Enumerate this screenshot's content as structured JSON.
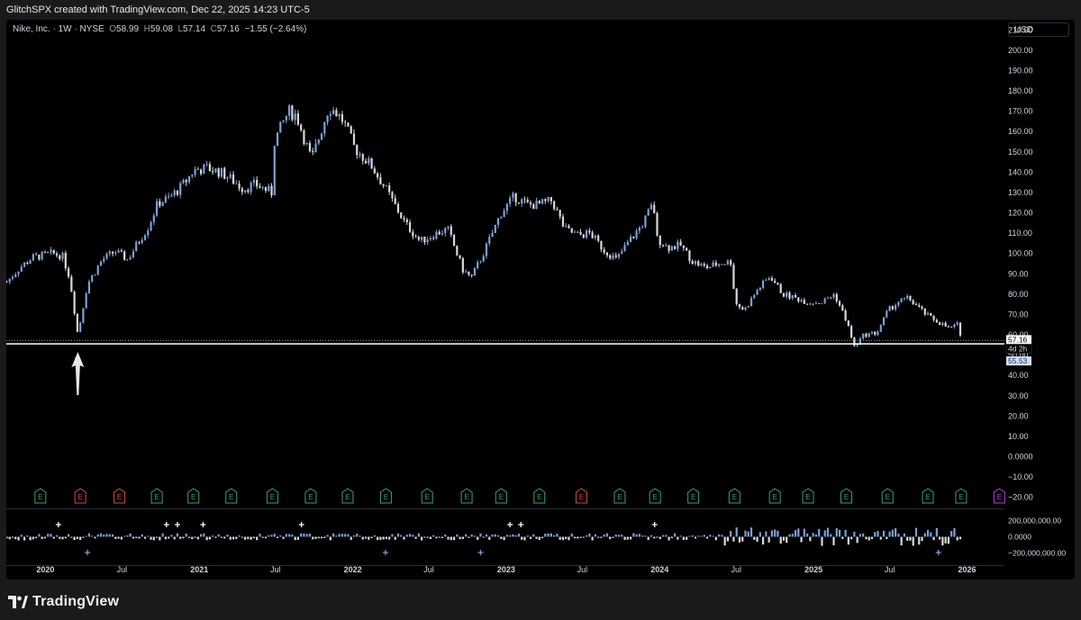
{
  "header": {
    "caption": "GlitchSPX created with TradingView.com, Dec 22, 2025 14:23 UTC-5"
  },
  "legend": {
    "symbol": "Nike, Inc. · 1W · NYSE",
    "open_label": "O",
    "open": "58.99",
    "high_label": "H",
    "high": "59.08",
    "low_label": "L",
    "low": "57.14",
    "close_label": "C",
    "close": "57.16",
    "change": "−1.55 (−2.64%)"
  },
  "currency": "USD",
  "colors": {
    "up": "#7ba0d8",
    "down": "#d8d8d8",
    "support_line": "#ffffff",
    "earnings_green": "#3c9c84",
    "earnings_red": "#d04a4a",
    "earnings_purple": "#b040d8",
    "price_label_bg": "#ffffff",
    "countdown_label_bg": "#2a3144",
    "low_label_bg": "#cfe0f8"
  },
  "price_axis": {
    "ticks": [
      "210.00",
      "200.00",
      "190.00",
      "180.00",
      "170.00",
      "160.00",
      "150.00",
      "140.00",
      "130.00",
      "120.00",
      "110.00",
      "100.00",
      "90.00",
      "80.00",
      "70.00",
      "60.00",
      "50.00",
      "40.00",
      "30.00",
      "20.00",
      "10.00",
      "0.0000",
      "−10.00",
      "−20.00"
    ],
    "current_price": "57.16",
    "countdown": "4d 2h",
    "support_price": "55.53"
  },
  "volume_axis": {
    "ticks": [
      "200,000,000.00",
      "0.0000",
      "−200,000,000.00"
    ]
  },
  "time_axis": {
    "labels": [
      {
        "text": "2020",
        "bold": true
      },
      {
        "text": "Jul",
        "bold": false
      },
      {
        "text": "2021",
        "bold": true
      },
      {
        "text": "Jul",
        "bold": false
      },
      {
        "text": "2022",
        "bold": true
      },
      {
        "text": "Jul",
        "bold": false
      },
      {
        "text": "2023",
        "bold": true
      },
      {
        "text": "Jul",
        "bold": false
      },
      {
        "text": "2024",
        "bold": true
      },
      {
        "text": "Jul",
        "bold": false
      },
      {
        "text": "2025",
        "bold": true
      },
      {
        "text": "Jul",
        "bold": false
      },
      {
        "text": "2026",
        "bold": true
      }
    ]
  },
  "earnings": {
    "marker_text": "E",
    "markers": [
      {
        "date": "2019-12-20",
        "type": "green"
      },
      {
        "date": "2020-03-24",
        "type": "red"
      },
      {
        "date": "2020-06-25",
        "type": "red"
      },
      {
        "date": "2020-09-22",
        "type": "green"
      },
      {
        "date": "2020-12-18",
        "type": "green"
      },
      {
        "date": "2021-03-18",
        "type": "green"
      },
      {
        "date": "2021-06-24",
        "type": "green"
      },
      {
        "date": "2021-09-23",
        "type": "green"
      },
      {
        "date": "2021-12-20",
        "type": "green"
      },
      {
        "date": "2022-03-21",
        "type": "green"
      },
      {
        "date": "2022-06-27",
        "type": "green"
      },
      {
        "date": "2022-09-29",
        "type": "green"
      },
      {
        "date": "2022-12-20",
        "type": "green"
      },
      {
        "date": "2023-03-21",
        "type": "green"
      },
      {
        "date": "2023-06-29",
        "type": "red"
      },
      {
        "date": "2023-09-28",
        "type": "green"
      },
      {
        "date": "2023-12-21",
        "type": "green"
      },
      {
        "date": "2024-03-21",
        "type": "green"
      },
      {
        "date": "2024-06-27",
        "type": "green"
      },
      {
        "date": "2024-10-01",
        "type": "green"
      },
      {
        "date": "2024-12-19",
        "type": "green"
      },
      {
        "date": "2025-03-20",
        "type": "green"
      },
      {
        "date": "2025-06-26",
        "type": "green"
      },
      {
        "date": "2025-09-30",
        "type": "green"
      },
      {
        "date": "2025-12-18",
        "type": "green"
      },
      {
        "date": "2026-03-19",
        "type": "purple"
      }
    ]
  },
  "chart_data": {
    "type": "candlestick",
    "interval": "1W",
    "x_range": [
      "2019-09-30",
      "2026-03-31"
    ],
    "ylim": [
      -25,
      215
    ],
    "support_level": 55.53,
    "last_close": 57.16,
    "close_path": [
      [
        "2019-10-01",
        86
      ],
      [
        "2019-11-01",
        93
      ],
      [
        "2019-12-01",
        98
      ],
      [
        "2020-01-15",
        100
      ],
      [
        "2020-02-10",
        99
      ],
      [
        "2020-02-28",
        88
      ],
      [
        "2020-03-18",
        60
      ],
      [
        "2020-04-10",
        85
      ],
      [
        "2020-05-15",
        97
      ],
      [
        "2020-06-15",
        101
      ],
      [
        "2020-07-15",
        97
      ],
      [
        "2020-08-10",
        106
      ],
      [
        "2020-09-01",
        113
      ],
      [
        "2020-09-25",
        125
      ],
      [
        "2020-10-20",
        127
      ],
      [
        "2020-11-20",
        133
      ],
      [
        "2020-12-20",
        141
      ],
      [
        "2021-01-20",
        142
      ],
      [
        "2021-02-20",
        140
      ],
      [
        "2021-03-15",
        137
      ],
      [
        "2021-04-15",
        132
      ],
      [
        "2021-05-15",
        134
      ],
      [
        "2021-06-22",
        130
      ],
      [
        "2021-06-28",
        155
      ],
      [
        "2021-08-01",
        170
      ],
      [
        "2021-08-20",
        168
      ],
      [
        "2021-09-25",
        146
      ],
      [
        "2021-11-05",
        172
      ],
      [
        "2021-11-20",
        170
      ],
      [
        "2021-12-10",
        165
      ],
      [
        "2022-01-05",
        152
      ],
      [
        "2022-02-15",
        143
      ],
      [
        "2022-03-20",
        132
      ],
      [
        "2022-05-05",
        115
      ],
      [
        "2022-06-10",
        106
      ],
      [
        "2022-07-20",
        110
      ],
      [
        "2022-08-15",
        112
      ],
      [
        "2022-09-20",
        92
      ],
      [
        "2022-10-10",
        88
      ],
      [
        "2022-11-10",
        101
      ],
      [
        "2022-12-20",
        120
      ],
      [
        "2023-01-20",
        128
      ],
      [
        "2023-02-20",
        124
      ],
      [
        "2023-03-20",
        124
      ],
      [
        "2023-04-20",
        126
      ],
      [
        "2023-05-20",
        112
      ],
      [
        "2023-06-20",
        109
      ],
      [
        "2023-07-20",
        110
      ],
      [
        "2023-08-20",
        102
      ],
      [
        "2023-09-20",
        97
      ],
      [
        "2023-10-20",
        106
      ],
      [
        "2023-11-20",
        114
      ],
      [
        "2023-12-18",
        125
      ],
      [
        "2023-12-22",
        108
      ],
      [
        "2024-01-20",
        103
      ],
      [
        "2024-02-20",
        104
      ],
      [
        "2024-03-20",
        96
      ],
      [
        "2024-04-20",
        93
      ],
      [
        "2024-05-20",
        95
      ],
      [
        "2024-06-20",
        96
      ],
      [
        "2024-06-28",
        76
      ],
      [
        "2024-07-20",
        72
      ],
      [
        "2024-08-20",
        82
      ],
      [
        "2024-09-20",
        89
      ],
      [
        "2024-10-20",
        80
      ],
      [
        "2024-11-20",
        78
      ],
      [
        "2024-12-20",
        76
      ],
      [
        "2025-01-20",
        76
      ],
      [
        "2025-02-20",
        80
      ],
      [
        "2025-03-20",
        67
      ],
      [
        "2025-04-08",
        54
      ],
      [
        "2025-05-01",
        60
      ],
      [
        "2025-06-01",
        61
      ],
      [
        "2025-06-27",
        72
      ],
      [
        "2025-07-20",
        76
      ],
      [
        "2025-08-15",
        78
      ],
      [
        "2025-09-20",
        71
      ],
      [
        "2025-10-02",
        69
      ],
      [
        "2025-10-20",
        67
      ],
      [
        "2025-11-20",
        63
      ],
      [
        "2025-12-10",
        65
      ],
      [
        "2025-12-19",
        58.71
      ],
      [
        "2025-12-22",
        57.16
      ]
    ],
    "volume_range": [
      -330000000,
      330000000
    ]
  }
}
